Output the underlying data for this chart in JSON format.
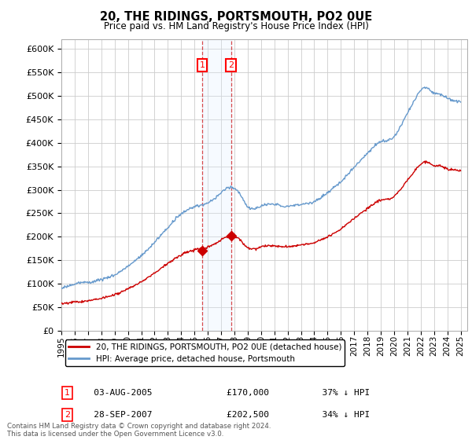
{
  "title": "20, THE RIDINGS, PORTSMOUTH, PO2 0UE",
  "subtitle": "Price paid vs. HM Land Registry's House Price Index (HPI)",
  "ylim": [
    0,
    620000
  ],
  "yticks": [
    0,
    50000,
    100000,
    150000,
    200000,
    250000,
    300000,
    350000,
    400000,
    450000,
    500000,
    550000,
    600000
  ],
  "xlim_start": 1995.0,
  "xlim_end": 2025.5,
  "sale1_x": 2005.58,
  "sale1_y": 170000,
  "sale2_x": 2007.74,
  "sale2_y": 202500,
  "sale1_date": "03-AUG-2005",
  "sale1_price": "£170,000",
  "sale1_hpi": "37% ↓ HPI",
  "sale2_date": "28-SEP-2007",
  "sale2_price": "£202,500",
  "sale2_hpi": "34% ↓ HPI",
  "legend_property": "20, THE RIDINGS, PORTSMOUTH, PO2 0UE (detached house)",
  "legend_hpi": "HPI: Average price, detached house, Portsmouth",
  "footer": "Contains HM Land Registry data © Crown copyright and database right 2024.\nThis data is licensed under the Open Government Licence v3.0.",
  "property_color": "#cc0000",
  "hpi_color": "#6699cc",
  "background_color": "#ffffff",
  "grid_color": "#cccccc",
  "shade_color": "#ddeeff"
}
